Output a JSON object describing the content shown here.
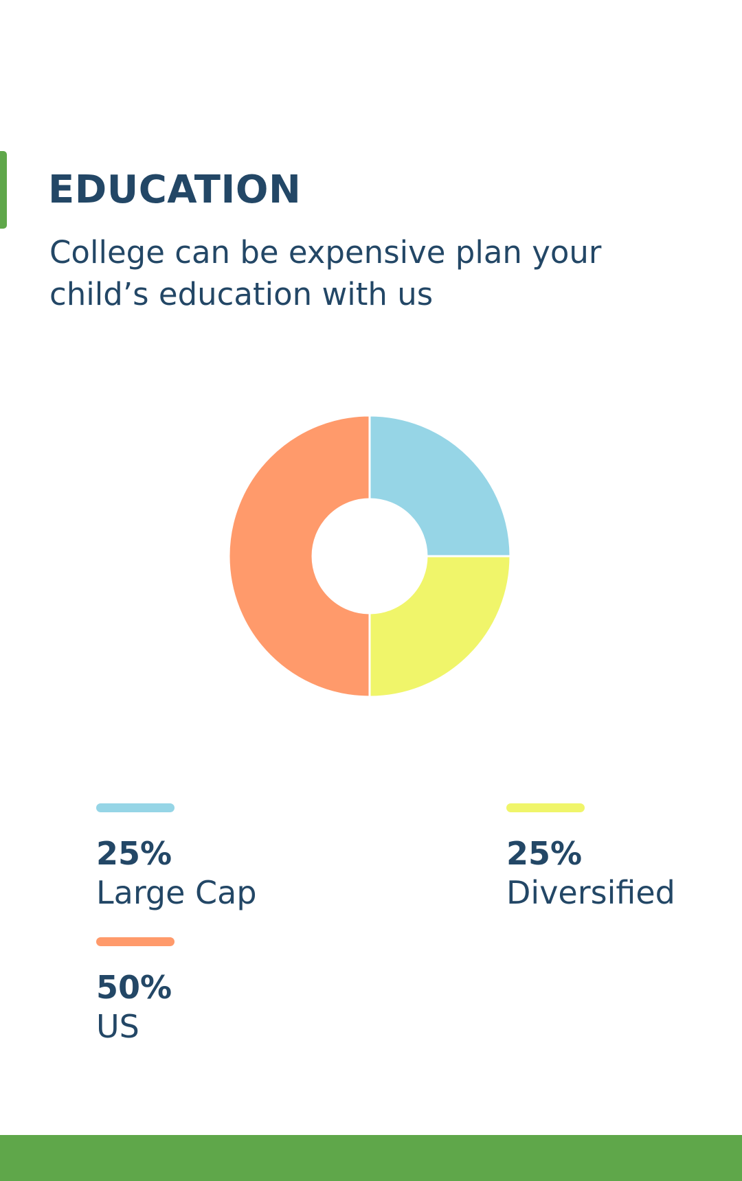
{
  "header": {
    "title": "EDUCATION",
    "subtitle": "College can be expensive plan your child’s education with us"
  },
  "colors": {
    "accent": "#5fa74a",
    "text": "#234766",
    "background": "#ffffff"
  },
  "chart_data": {
    "type": "pie",
    "donut": true,
    "slices": [
      {
        "label": "Large Cap",
        "value": 25,
        "display": "25%",
        "color": "#96d5e6"
      },
      {
        "label": "Diversified",
        "value": 25,
        "display": "25%",
        "color": "#f0f56a"
      },
      {
        "label": "US",
        "value": 50,
        "display": "50%",
        "color": "#ff9a6b"
      }
    ],
    "legend": "bottom"
  }
}
